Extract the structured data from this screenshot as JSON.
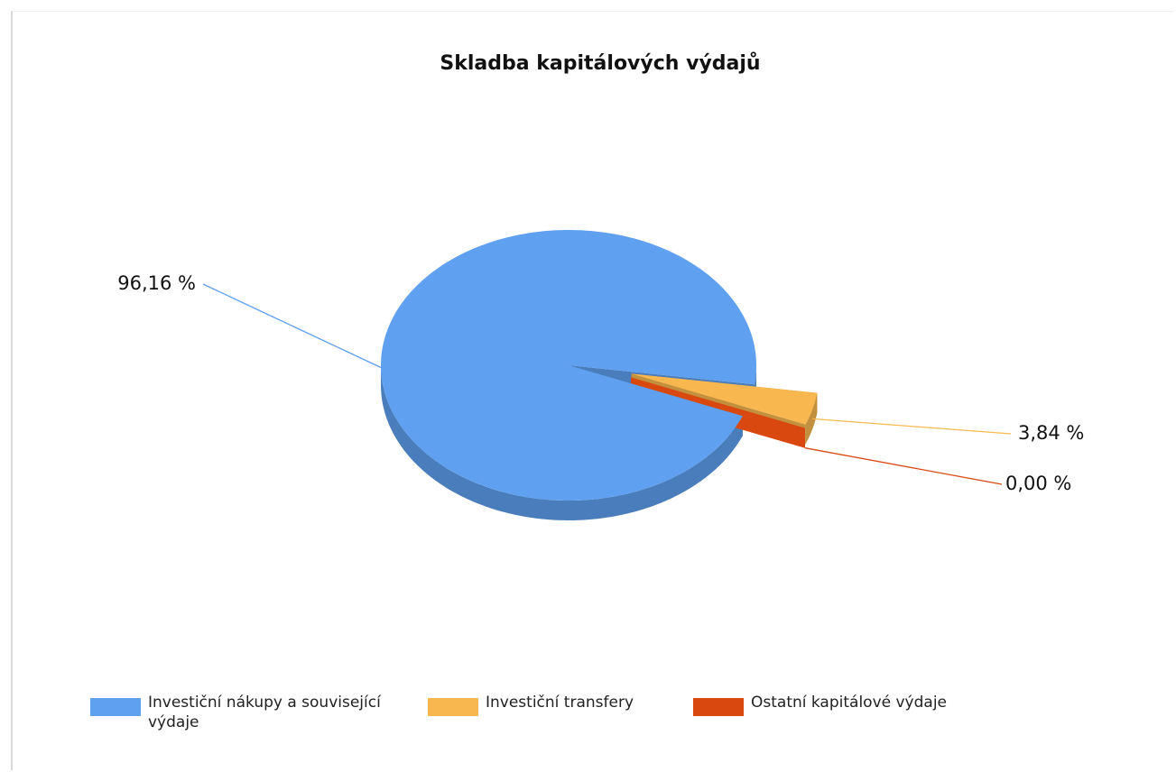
{
  "chart_data": {
    "type": "pie",
    "title": "Skladba kapitálových výdajů",
    "categories": [
      "Investiční nákupy a související výdaje",
      "Investiční transfery",
      "Ostatní kapitálové výdaje"
    ],
    "values": [
      96.16,
      3.84,
      0.0
    ],
    "value_labels": [
      "96,16 %",
      "3,84 %",
      "0,00 %"
    ],
    "colors": [
      "#5fa0f0",
      "#f9b84f",
      "#d9480f"
    ],
    "legend": "bottom"
  }
}
